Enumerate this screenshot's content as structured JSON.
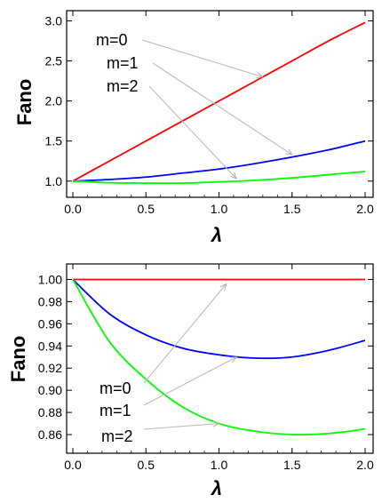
{
  "colors": {
    "m0": "#ff0000",
    "m1": "#0000ff",
    "m2": "#00ff00",
    "arrow": "#bbbbbb",
    "frame": "#000000"
  },
  "chart_data": [
    {
      "type": "line",
      "title": "",
      "xlabel": "λ",
      "ylabel": "Fano",
      "xlim": [
        0,
        2
      ],
      "ylim": [
        0.92,
        3.05
      ],
      "xticks": [
        "0.0",
        "0.5",
        "1.0",
        "1.5",
        "2.0"
      ],
      "yticks": [
        "1.0",
        "1.5",
        "2.0",
        "2.5",
        "3.0"
      ],
      "x": [
        0,
        0.25,
        0.5,
        0.75,
        1.0,
        1.25,
        1.5,
        1.75,
        2.0
      ],
      "series": [
        {
          "name": "m=0",
          "values": [
            1.0,
            1.25,
            1.5,
            1.75,
            2.0,
            2.25,
            2.5,
            2.75,
            2.98
          ]
        },
        {
          "name": "m=1",
          "values": [
            1.0,
            1.02,
            1.05,
            1.1,
            1.15,
            1.22,
            1.3,
            1.39,
            1.5
          ]
        },
        {
          "name": "m=2",
          "values": [
            1.0,
            0.98,
            0.975,
            0.975,
            0.99,
            1.01,
            1.04,
            1.08,
            1.12
          ]
        }
      ],
      "annotations": [
        {
          "text": "m=0",
          "target": [
            1.3,
            2.3
          ]
        },
        {
          "text": "m=1",
          "target": [
            1.5,
            1.33
          ]
        },
        {
          "text": "m=2",
          "target": [
            1.12,
            1.03
          ]
        }
      ]
    },
    {
      "type": "line",
      "title": "",
      "xlabel": "λ",
      "ylabel": "Fano",
      "xlim": [
        0,
        2
      ],
      "ylim": [
        0.852,
        1.006
      ],
      "xticks": [
        "0.0",
        "0.5",
        "1.0",
        "1.5",
        "2.0"
      ],
      "yticks": [
        "0.86",
        "0.88",
        "0.90",
        "0.92",
        "0.94",
        "0.96",
        "0.98",
        "1.00"
      ],
      "x": [
        0,
        0.25,
        0.5,
        0.75,
        1.0,
        1.25,
        1.5,
        1.75,
        2.0
      ],
      "series": [
        {
          "name": "m=0",
          "values": [
            1.0,
            1.0,
            1.0,
            1.0,
            1.0,
            1.0,
            1.0,
            1.0,
            1.0
          ]
        },
        {
          "name": "m=1",
          "values": [
            1.0,
            0.969,
            0.95,
            0.938,
            0.932,
            0.929,
            0.93,
            0.936,
            0.945
          ]
        },
        {
          "name": "m=2",
          "values": [
            1.0,
            0.944,
            0.91,
            0.885,
            0.87,
            0.863,
            0.86,
            0.861,
            0.865
          ]
        }
      ],
      "annotations": [
        {
          "text": "m=0",
          "target": [
            1.05,
            0.996
          ]
        },
        {
          "text": "m=1",
          "target": [
            1.12,
            0.93
          ]
        },
        {
          "text": "m=2",
          "target": [
            1.0,
            0.87
          ]
        }
      ]
    }
  ]
}
